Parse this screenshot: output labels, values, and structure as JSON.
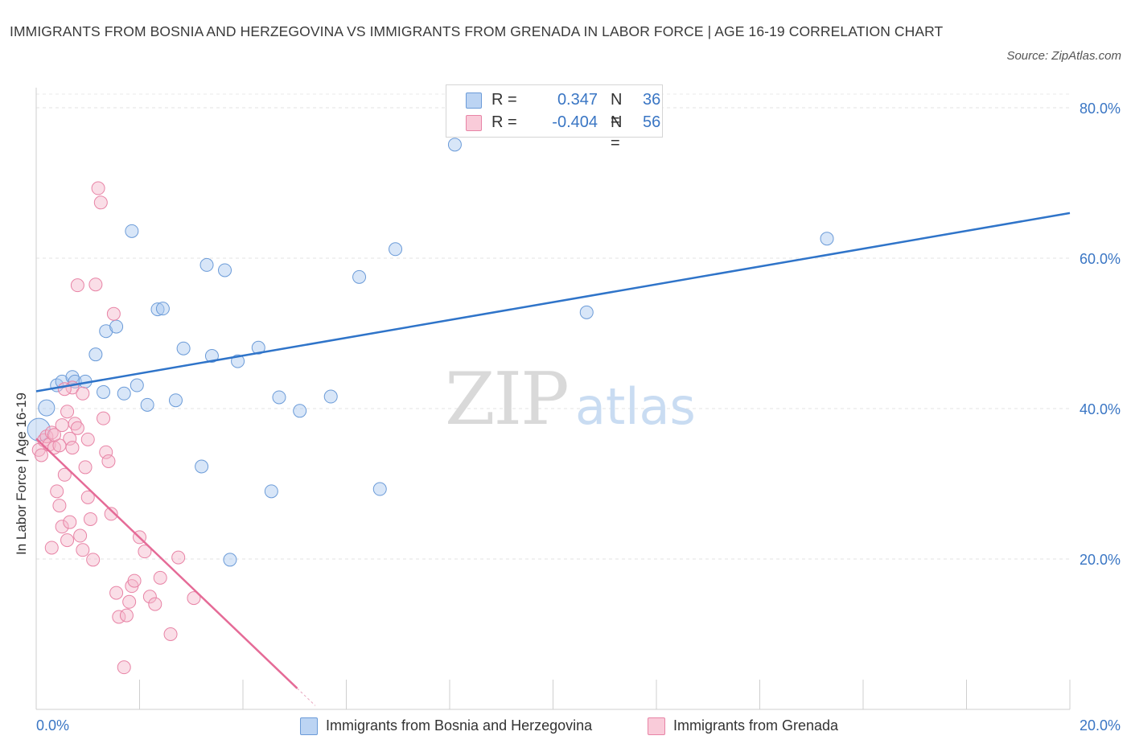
{
  "chart_data": {
    "type": "scatter",
    "title": "IMMIGRANTS FROM BOSNIA AND HERZEGOVINA VS IMMIGRANTS FROM GRENADA IN LABOR FORCE | AGE 16-19 CORRELATION CHART",
    "source": "Source: ZipAtlas.com",
    "xlabel": "",
    "ylabel": "In Labor Force | Age 16-19",
    "xlim": [
      0,
      20
    ],
    "ylim": [
      0,
      80
    ],
    "x_tick_labels": [
      "0.0%",
      "20.0%"
    ],
    "y_tick_labels": [
      "20.0%",
      "40.0%",
      "60.0%",
      "80.0%"
    ],
    "y_ticks": [
      20,
      40,
      60,
      80
    ],
    "grid": true,
    "watermark": {
      "zip": "ZIP",
      "atlas": "atlas"
    },
    "stats_box": [
      {
        "r_label": "R =",
        "r_value": "0.347",
        "n_label": "N =",
        "n_value": "36"
      },
      {
        "r_label": "R =",
        "r_value": "-0.404",
        "n_label": "N =",
        "n_value": "56"
      }
    ],
    "series": [
      {
        "name": "Immigrants from Bosnia and Herzegovina",
        "color": "#a9c8ef",
        "edge_color": "#6b9bd8",
        "line_color": "#2f74c9",
        "trend": {
          "x": [
            0,
            20
          ],
          "y": [
            42.3,
            66.0
          ]
        },
        "points": [
          [
            0.05,
            37.2
          ],
          [
            0.2,
            40.1
          ],
          [
            0.4,
            43.1
          ],
          [
            0.5,
            43.6
          ],
          [
            0.7,
            44.2
          ],
          [
            0.75,
            43.6
          ],
          [
            0.95,
            43.6
          ],
          [
            1.15,
            47.2
          ],
          [
            1.3,
            42.2
          ],
          [
            1.35,
            50.3
          ],
          [
            1.55,
            50.9
          ],
          [
            1.7,
            42.0
          ],
          [
            1.85,
            63.6
          ],
          [
            1.95,
            43.1
          ],
          [
            2.15,
            40.5
          ],
          [
            2.35,
            53.2
          ],
          [
            2.45,
            53.3
          ],
          [
            2.7,
            41.1
          ],
          [
            2.85,
            48.0
          ],
          [
            3.2,
            32.3
          ],
          [
            3.3,
            59.1
          ],
          [
            3.4,
            47.0
          ],
          [
            3.65,
            58.4
          ],
          [
            3.75,
            19.9
          ],
          [
            3.9,
            46.3
          ],
          [
            4.3,
            48.1
          ],
          [
            4.55,
            29.0
          ],
          [
            4.7,
            41.5
          ],
          [
            5.1,
            39.7
          ],
          [
            5.7,
            41.6
          ],
          [
            6.25,
            57.5
          ],
          [
            6.65,
            29.3
          ],
          [
            6.95,
            61.2
          ],
          [
            8.1,
            75.1
          ],
          [
            10.65,
            52.8
          ],
          [
            15.3,
            62.6
          ]
        ]
      },
      {
        "name": "Immigrants from Grenada",
        "color": "#f5b5c9",
        "edge_color": "#e884a6",
        "line_color": "#e56b97",
        "trend": {
          "x": [
            0,
            5.05
          ],
          "y": [
            36.0,
            2.8
          ]
        },
        "points": [
          [
            0.05,
            34.5
          ],
          [
            0.1,
            33.8
          ],
          [
            0.15,
            35.8
          ],
          [
            0.2,
            36.3
          ],
          [
            0.25,
            35.2
          ],
          [
            0.3,
            36.8
          ],
          [
            0.35,
            34.8
          ],
          [
            0.4,
            29.0
          ],
          [
            0.45,
            27.1
          ],
          [
            0.5,
            24.3
          ],
          [
            0.55,
            31.2
          ],
          [
            0.6,
            22.5
          ],
          [
            0.65,
            36.0
          ],
          [
            0.7,
            42.8
          ],
          [
            0.75,
            38.0
          ],
          [
            0.8,
            56.4
          ],
          [
            0.85,
            23.1
          ],
          [
            0.9,
            21.2
          ],
          [
            0.95,
            32.2
          ],
          [
            1.0,
            28.2
          ],
          [
            1.05,
            25.3
          ],
          [
            1.1,
            19.9
          ],
          [
            1.15,
            56.5
          ],
          [
            1.2,
            69.3
          ],
          [
            1.25,
            67.4
          ],
          [
            1.3,
            38.7
          ],
          [
            1.35,
            34.2
          ],
          [
            1.4,
            33.0
          ],
          [
            1.45,
            26.0
          ],
          [
            1.5,
            52.6
          ],
          [
            1.55,
            15.5
          ],
          [
            1.6,
            12.3
          ],
          [
            1.7,
            5.6
          ],
          [
            1.75,
            12.5
          ],
          [
            1.8,
            14.3
          ],
          [
            1.85,
            16.4
          ],
          [
            1.9,
            17.1
          ],
          [
            2.0,
            22.9
          ],
          [
            2.1,
            21.0
          ],
          [
            2.2,
            15.0
          ],
          [
            2.3,
            14.0
          ],
          [
            2.4,
            17.5
          ],
          [
            2.6,
            10.0
          ],
          [
            2.75,
            20.2
          ],
          [
            3.05,
            14.8
          ],
          [
            0.3,
            21.5
          ],
          [
            0.45,
            35.1
          ],
          [
            0.5,
            37.8
          ],
          [
            0.55,
            42.6
          ],
          [
            0.6,
            39.6
          ],
          [
            0.65,
            24.9
          ],
          [
            0.7,
            34.8
          ],
          [
            0.8,
            37.4
          ],
          [
            0.9,
            42.0
          ],
          [
            1.0,
            35.9
          ],
          [
            0.35,
            36.5
          ]
        ]
      }
    ]
  }
}
